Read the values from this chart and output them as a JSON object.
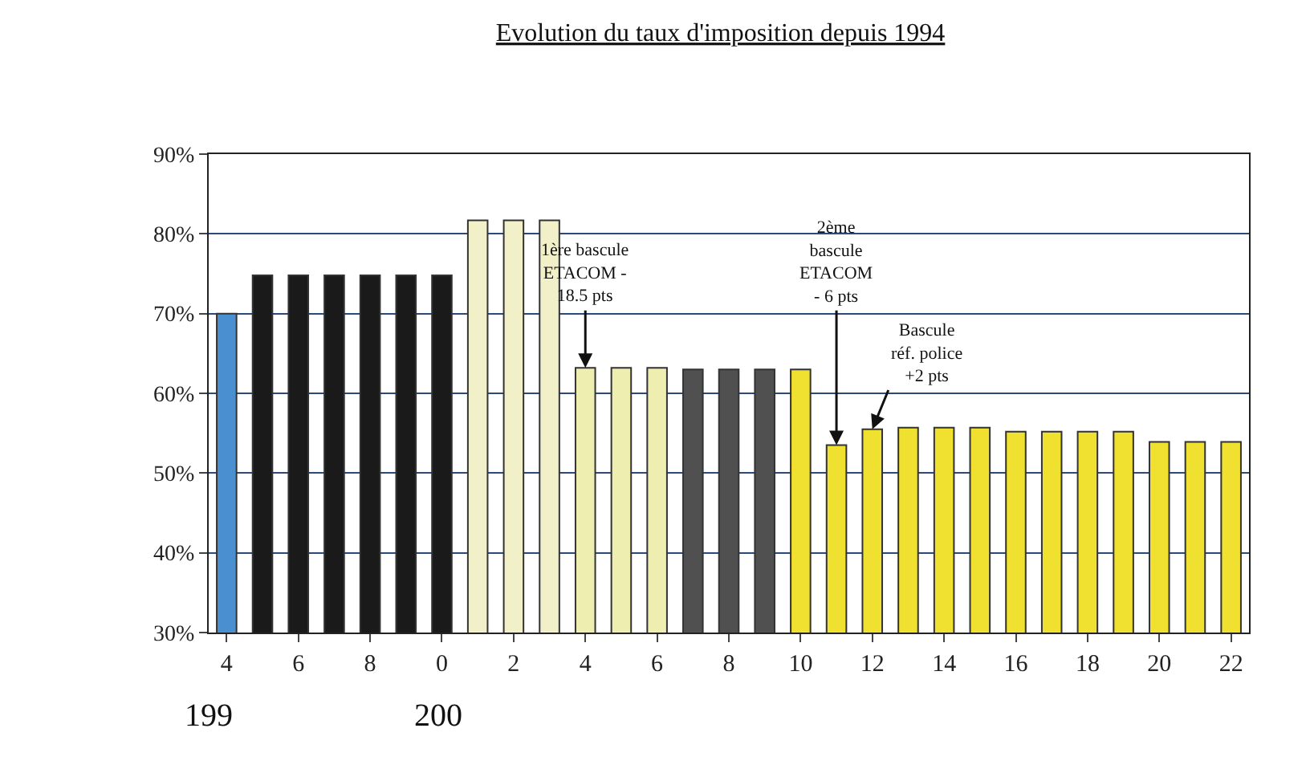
{
  "chart_data": {
    "type": "bar",
    "title": "Evolution du taux d'imposition depuis 1994",
    "categories": [
      "4",
      null,
      "6",
      null,
      "8",
      null,
      "0",
      null,
      "2",
      null,
      "4",
      null,
      "6",
      null,
      "8",
      null,
      "10",
      null,
      "12",
      null,
      "14",
      null,
      "16",
      null,
      "18",
      null,
      "20",
      null,
      "22"
    ],
    "values": [
      70,
      74.8,
      74.8,
      74.8,
      74.8,
      74.8,
      74.8,
      81.7,
      81.7,
      81.7,
      63.2,
      63.2,
      63.2,
      63,
      63,
      63,
      63,
      53.5,
      55.5,
      55.7,
      55.7,
      55.7,
      55.2,
      55.2,
      55.2,
      55.2,
      53.9,
      53.9,
      53.9
    ],
    "colors": [
      "#4a8fd0",
      "#1a1a1a",
      "#1a1a1a",
      "#1a1a1a",
      "#1a1a1a",
      "#1a1a1a",
      "#1a1a1a",
      "#f2f0c8",
      "#f2f0c8",
      "#f2f0c8",
      "#eeeeb0",
      "#eeeeb0",
      "#eeeeb0",
      "#505050",
      "#505050",
      "#505050",
      "#f0e030",
      "#f0e030",
      "#f0e030",
      "#f0e030",
      "#f0e030",
      "#f0e030",
      "#f0e030",
      "#f0e030",
      "#f0e030",
      "#f0e030",
      "#f0e030",
      "#f0e030",
      "#f0e030"
    ],
    "ylim": [
      30,
      90
    ],
    "yticks": [
      {
        "value": 30,
        "label": "30%"
      },
      {
        "value": 40,
        "label": "40%"
      },
      {
        "value": 50,
        "label": "50%"
      },
      {
        "value": 60,
        "label": "60%"
      },
      {
        "value": 70,
        "label": "70%"
      },
      {
        "value": 80,
        "label": "80%"
      },
      {
        "value": 90,
        "label": "90%"
      }
    ],
    "grid": "y",
    "annotations": [
      {
        "text": "1ère bascule\nETACOM -\n18.5 pts",
        "y": 63.2
      },
      {
        "text": "2ème\nbascule\nETACOM\n- 6 pts",
        "y": 53.5
      },
      {
        "text": "Bascule\nréf. police\n+2 pts",
        "y": 55.5
      },
      "199",
      "200"
    ]
  }
}
